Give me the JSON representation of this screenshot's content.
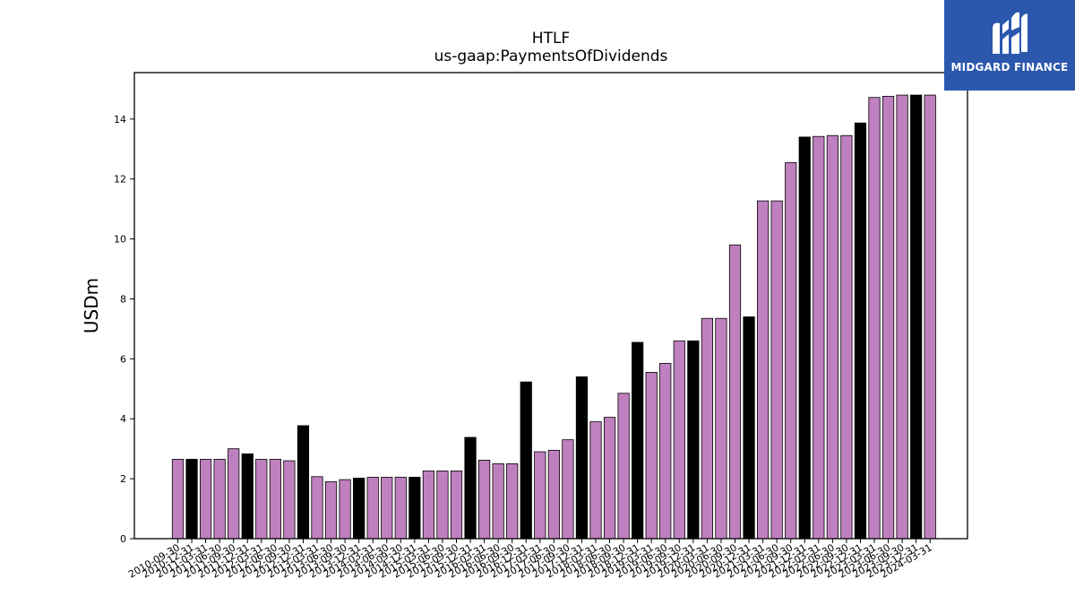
{
  "brand": {
    "name": "MIDGARD FINANCE",
    "logo_icon": "midgard-mh-monogram-icon",
    "background_color": "#2b57ad"
  },
  "colors": {
    "bar_regular": "#bf80bf",
    "bar_highlight": "#000000",
    "bar_edge": "#000000"
  },
  "chart_data": {
    "type": "bar",
    "title": "HTLF",
    "subtitle": "us-gaap:PaymentsOfDividends",
    "xlabel": "",
    "ylabel": "USDm",
    "ylim": [
      0,
      15.55
    ],
    "yticks": [
      0,
      2,
      4,
      6,
      8,
      10,
      12,
      14
    ],
    "grid": false,
    "legend": "none",
    "categories": [
      "2010-09-30",
      "2010-12-31",
      "2011-03-31",
      "2011-06-30",
      "2011-09-30",
      "2011-12-31",
      "2012-03-31",
      "2012-06-30",
      "2012-09-30",
      "2012-12-31",
      "2013-03-31",
      "2013-06-30",
      "2013-09-30",
      "2013-12-31",
      "2014-03-31",
      "2014-06-30",
      "2014-09-30",
      "2014-12-31",
      "2015-03-31",
      "2015-06-30",
      "2015-09-30",
      "2015-12-31",
      "2016-03-31",
      "2016-06-30",
      "2016-09-30",
      "2016-12-31",
      "2017-03-31",
      "2017-06-30",
      "2017-09-30",
      "2017-12-31",
      "2018-03-31",
      "2018-06-30",
      "2018-09-30",
      "2018-12-31",
      "2019-03-31",
      "2019-06-30",
      "2019-09-30",
      "2019-12-31",
      "2020-03-31",
      "2020-06-30",
      "2020-09-30",
      "2020-12-31",
      "2021-03-31",
      "2021-06-30",
      "2021-09-30",
      "2021-12-31",
      "2022-03-31",
      "2022-06-30",
      "2022-09-30",
      "2022-12-31",
      "2023-03-31",
      "2023-06-30",
      "2023-09-30",
      "2023-12-31",
      "2024-03-31"
    ],
    "values": [
      2.65,
      2.65,
      2.65,
      2.65,
      3.0,
      2.83,
      2.65,
      2.65,
      2.6,
      3.77,
      2.07,
      1.9,
      1.97,
      2.02,
      2.05,
      2.05,
      2.05,
      2.05,
      2.26,
      2.26,
      2.26,
      3.38,
      2.62,
      2.5,
      2.5,
      5.23,
      2.9,
      2.95,
      3.3,
      5.4,
      3.9,
      4.05,
      4.85,
      6.55,
      5.55,
      5.85,
      6.6,
      6.6,
      7.35,
      7.35,
      9.8,
      7.4,
      11.27,
      11.27,
      12.55,
      13.4,
      13.42,
      13.45,
      13.45,
      13.87,
      14.72,
      14.76,
      14.8,
      14.8,
      14.8
    ],
    "highlight": [
      false,
      true,
      false,
      false,
      false,
      true,
      false,
      false,
      false,
      true,
      false,
      false,
      false,
      true,
      false,
      false,
      false,
      true,
      false,
      false,
      false,
      true,
      false,
      false,
      false,
      true,
      false,
      false,
      false,
      true,
      false,
      false,
      false,
      true,
      false,
      false,
      false,
      true,
      false,
      false,
      false,
      true,
      false,
      false,
      false,
      true,
      false,
      false,
      false,
      true,
      false,
      false,
      false,
      true,
      false
    ]
  }
}
